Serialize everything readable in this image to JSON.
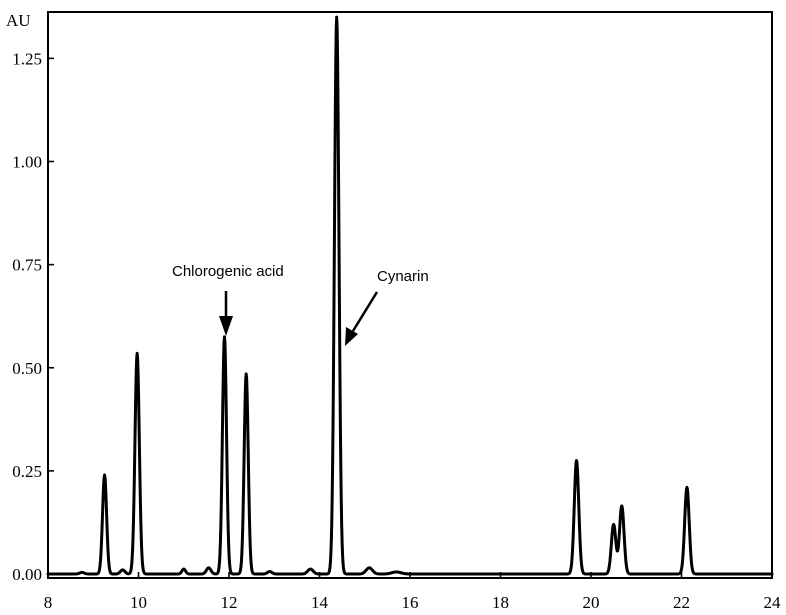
{
  "chart_data": {
    "type": "line",
    "title": "",
    "xlabel": "",
    "ylabel": "AU",
    "xlim": [
      8,
      24
    ],
    "ylim": [
      0,
      1.35
    ],
    "xticks": [
      "8",
      "10",
      "12",
      "14",
      "16",
      "18",
      "20",
      "22",
      "24"
    ],
    "yticks": [
      "0.00",
      "0.25",
      "0.50",
      "0.75",
      "1.00",
      "1.25"
    ],
    "grid": false,
    "legend": "none",
    "series": [
      {
        "peaks": [
          {
            "x": 8.75,
            "y": 0.004,
            "w": 0.05
          },
          {
            "x": 9.25,
            "y": 0.24,
            "w": 0.045
          },
          {
            "x": 9.65,
            "y": 0.01,
            "w": 0.05
          },
          {
            "x": 9.97,
            "y": 0.535,
            "w": 0.048
          },
          {
            "x": 11.0,
            "y": 0.012,
            "w": 0.04
          },
          {
            "x": 11.55,
            "y": 0.015,
            "w": 0.05
          },
          {
            "x": 11.9,
            "y": 0.575,
            "w": 0.045
          },
          {
            "x": 12.38,
            "y": 0.485,
            "w": 0.045
          },
          {
            "x": 12.9,
            "y": 0.006,
            "w": 0.05
          },
          {
            "x": 13.8,
            "y": 0.012,
            "w": 0.06
          },
          {
            "x": 14.38,
            "y": 1.35,
            "w": 0.05
          },
          {
            "x": 15.1,
            "y": 0.015,
            "w": 0.07
          },
          {
            "x": 15.7,
            "y": 0.005,
            "w": 0.1
          },
          {
            "x": 19.68,
            "y": 0.275,
            "w": 0.05
          },
          {
            "x": 20.5,
            "y": 0.12,
            "w": 0.05
          },
          {
            "x": 20.68,
            "y": 0.165,
            "w": 0.05
          },
          {
            "x": 22.12,
            "y": 0.21,
            "w": 0.05
          }
        ]
      }
    ],
    "annotations": [
      {
        "text": "Chlorogenic acid",
        "x": 11.9,
        "y": 0.575
      },
      {
        "text": "Cynarin",
        "x": 14.45,
        "y": 0.57
      }
    ]
  }
}
